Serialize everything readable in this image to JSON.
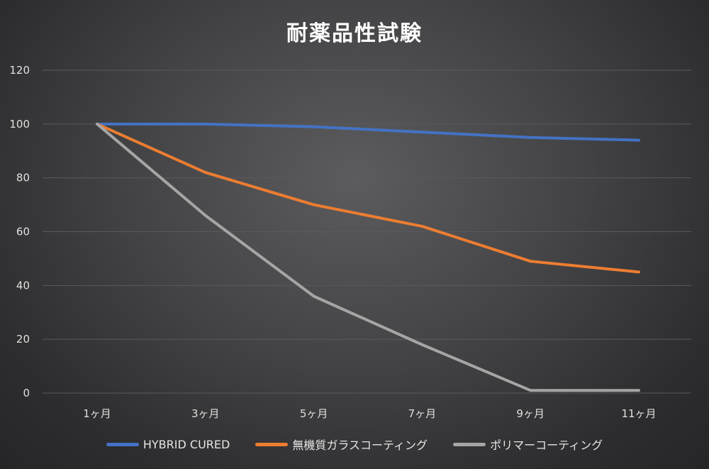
{
  "chart_data": {
    "type": "line",
    "title": "耐薬品性試験",
    "xlabel": "",
    "ylabel": "",
    "categories": [
      "1ヶ月",
      "3ヶ月",
      "5ヶ月",
      "7ヶ月",
      "9ヶ月",
      "11ヶ月"
    ],
    "ylim": [
      0,
      120
    ],
    "yticks": [
      0,
      20,
      40,
      60,
      80,
      100,
      120
    ],
    "grid": true,
    "legend_position": "bottom",
    "series": [
      {
        "name": "HYBRID CURED",
        "color": "#4472c4",
        "values": [
          100,
          100,
          99,
          97,
          95,
          94
        ]
      },
      {
        "name": "無機質ガラスコーティング",
        "color": "#ed7d31",
        "values": [
          100,
          82,
          70,
          62,
          49,
          45
        ]
      },
      {
        "name": "ポリマーコーティング",
        "color": "#a5a5a5",
        "values": [
          100,
          66,
          36,
          18,
          1,
          1
        ]
      }
    ]
  }
}
